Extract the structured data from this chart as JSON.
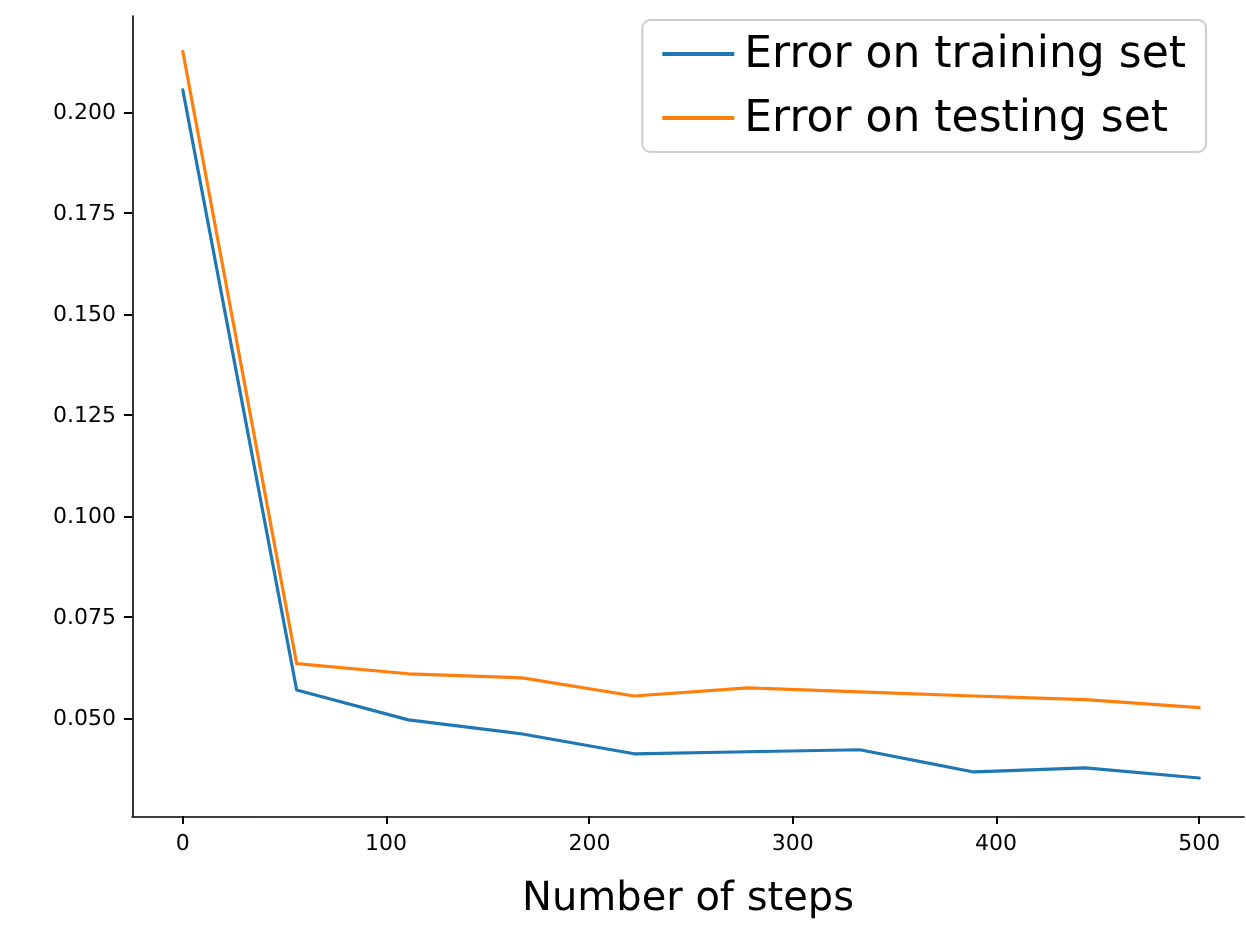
{
  "chart_data": {
    "type": "line",
    "xlabel": "Number of steps",
    "x": [
      0,
      56,
      111,
      167,
      222,
      278,
      333,
      389,
      444,
      500
    ],
    "series": [
      {
        "name": "Error on training set",
        "color": "#1f77b4",
        "values": [
          0.2054,
          0.0569,
          0.0495,
          0.046,
          0.0411,
          0.0416,
          0.0421,
          0.0366,
          0.0376,
          0.0351
        ]
      },
      {
        "name": "Error on testing set",
        "color": "#ff7f0e",
        "values": [
          0.2149,
          0.0634,
          0.0609,
          0.0599,
          0.0554,
          0.0574,
          0.0564,
          0.0554,
          0.0545,
          0.0525
        ]
      }
    ],
    "xlim": [
      -25,
      522
    ],
    "ylim": [
      0.0257,
      0.2237
    ],
    "xticks": [
      0,
      100,
      200,
      300,
      400,
      500
    ],
    "yticks": [
      {
        "value": 0.05,
        "label": "0.050"
      },
      {
        "value": 0.075,
        "label": "0.075"
      },
      {
        "value": 0.1,
        "label": "0.100"
      },
      {
        "value": 0.125,
        "label": "0.125"
      },
      {
        "value": 0.15,
        "label": "0.150"
      },
      {
        "value": 0.175,
        "label": "0.175"
      },
      {
        "value": 0.2,
        "label": "0.200"
      }
    ],
    "grid": false,
    "legend": "top right",
    "marker": "none",
    "line_style": "solid"
  }
}
